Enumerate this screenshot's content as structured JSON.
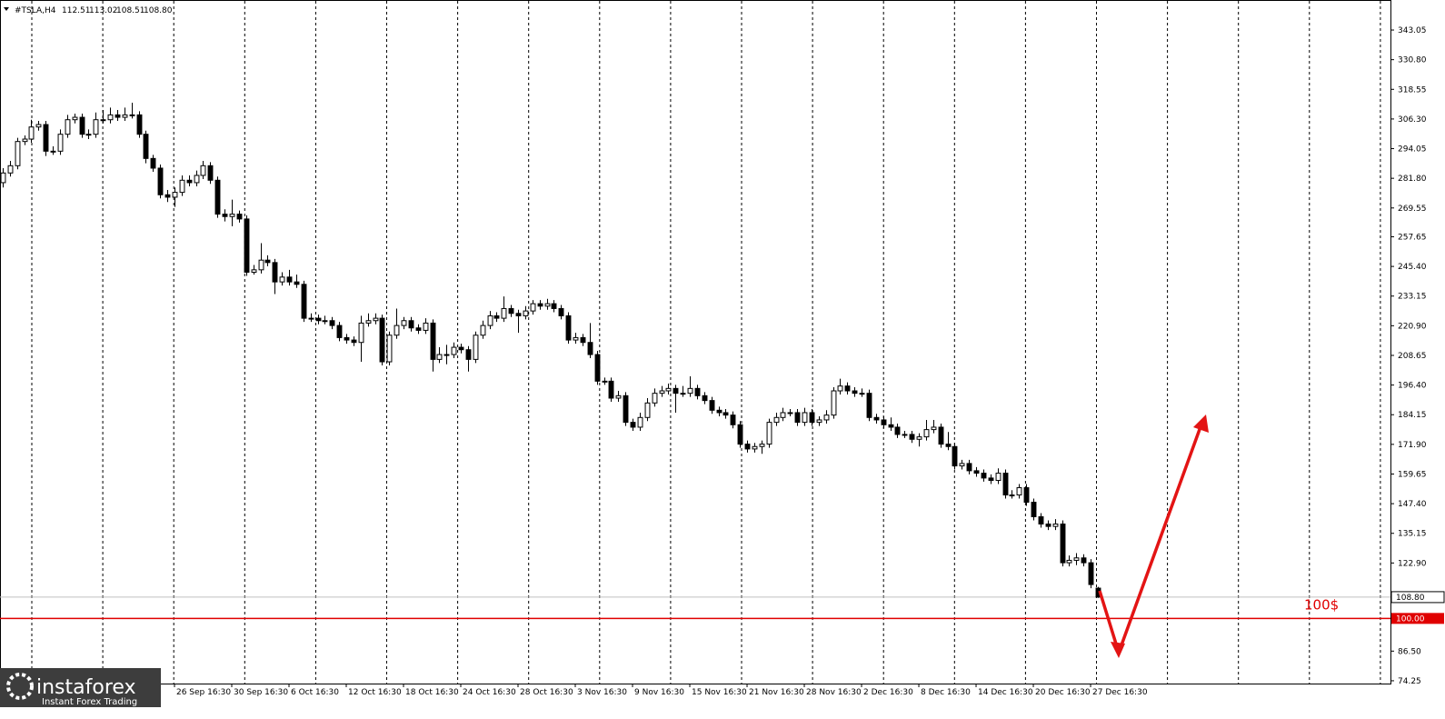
{
  "chart_data": {
    "type": "candlestick",
    "title": "#TSLA,H4",
    "ohlc_labels": [
      "112.51",
      "113.02",
      "108.51",
      "108.80"
    ],
    "candles": [
      [
        280,
        286,
        278,
        284
      ],
      [
        284,
        289,
        282.5,
        287
      ],
      [
        287,
        298.5,
        285.5,
        297
      ],
      [
        297,
        299.5,
        295.5,
        298
      ],
      [
        298,
        306,
        296.5,
        303
      ],
      [
        303,
        305.5,
        301.5,
        304
      ],
      [
        304,
        305.5,
        291,
        293
      ],
      [
        293,
        295,
        291.5,
        293
      ],
      [
        293,
        302,
        291.5,
        300
      ],
      [
        300,
        308,
        298.5,
        306
      ],
      [
        306,
        308.5,
        304.5,
        307
      ],
      [
        307,
        308.5,
        298.5,
        300
      ],
      [
        300,
        302,
        298,
        300
      ],
      [
        300,
        309,
        298.5,
        306
      ],
      [
        306,
        310,
        304.5,
        306
      ],
      [
        306,
        311,
        304.5,
        308
      ],
      [
        308,
        310,
        305.5,
        307
      ],
      [
        307,
        311,
        305.5,
        308
      ],
      [
        308,
        313,
        306.5,
        308
      ],
      [
        308,
        309.5,
        298.5,
        300
      ],
      [
        300,
        301.5,
        288,
        290
      ],
      [
        290,
        291.5,
        284.5,
        286
      ],
      [
        286,
        287.5,
        273.5,
        275
      ],
      [
        275,
        277,
        272,
        274
      ],
      [
        274,
        278,
        270,
        276
      ],
      [
        276,
        283,
        274.5,
        281
      ],
      [
        281,
        283,
        278.5,
        280
      ],
      [
        280,
        285,
        278.5,
        283
      ],
      [
        283,
        289,
        281.5,
        287
      ],
      [
        287,
        288.5,
        279.5,
        281
      ],
      [
        281,
        282.5,
        265.5,
        267
      ],
      [
        267,
        269,
        264,
        266
      ],
      [
        266,
        273,
        262,
        267
      ],
      [
        267,
        268.5,
        263.5,
        265
      ],
      [
        265,
        266.5,
        241.5,
        243
      ],
      [
        243,
        246,
        242,
        244
      ],
      [
        244,
        255,
        242.5,
        248
      ],
      [
        248,
        250,
        245.5,
        247
      ],
      [
        247,
        248.5,
        234,
        239
      ],
      [
        239,
        243,
        237.5,
        241
      ],
      [
        241,
        244,
        237.5,
        239
      ],
      [
        239,
        242,
        236.5,
        238
      ],
      [
        238,
        239.5,
        222.5,
        224
      ],
      [
        224,
        226,
        222.5,
        224
      ],
      [
        224,
        225.5,
        221.5,
        223
      ],
      [
        223,
        225,
        221.5,
        223
      ],
      [
        223,
        224.5,
        219.5,
        221
      ],
      [
        221,
        222.5,
        214.5,
        216
      ],
      [
        216,
        217.5,
        213.5,
        215
      ],
      [
        215,
        216.5,
        212.5,
        214
      ],
      [
        214,
        225,
        206,
        222
      ],
      [
        222,
        226,
        220.5,
        223
      ],
      [
        223,
        226,
        221.5,
        224
      ],
      [
        224,
        225.5,
        204.5,
        206
      ],
      [
        206,
        218.5,
        204.5,
        217
      ],
      [
        217,
        228,
        215.5,
        221
      ],
      [
        221,
        224.5,
        219.5,
        223
      ],
      [
        223,
        224.5,
        218.5,
        220
      ],
      [
        220,
        221.5,
        217.5,
        219
      ],
      [
        219,
        224,
        217.5,
        222
      ],
      [
        222,
        223.5,
        202,
        207
      ],
      [
        207,
        212,
        205.5,
        209
      ],
      [
        209,
        213,
        205,
        209
      ],
      [
        209,
        214,
        207.5,
        212
      ],
      [
        212,
        213.5,
        209.5,
        211
      ],
      [
        211,
        212.5,
        202,
        207
      ],
      [
        207,
        218.5,
        205.5,
        217
      ],
      [
        217,
        223,
        215.5,
        221
      ],
      [
        221,
        227,
        219.5,
        225
      ],
      [
        225,
        226.5,
        222.5,
        224
      ],
      [
        224,
        233,
        222.5,
        228
      ],
      [
        228,
        229.5,
        224.5,
        226
      ],
      [
        226,
        227.5,
        218,
        225
      ],
      [
        225,
        229,
        223.5,
        227
      ],
      [
        227,
        231.5,
        225.5,
        230
      ],
      [
        230,
        231.5,
        227.5,
        229
      ],
      [
        229,
        232,
        227.5,
        230
      ],
      [
        230,
        231.5,
        226.5,
        228
      ],
      [
        228,
        229.5,
        223.5,
        225
      ],
      [
        225,
        226.5,
        213.5,
        215
      ],
      [
        215,
        218,
        213.5,
        216
      ],
      [
        216,
        217.5,
        212.5,
        214
      ],
      [
        214,
        222,
        207.5,
        209
      ],
      [
        209,
        210.5,
        196.5,
        198
      ],
      [
        198,
        199.5,
        196.5,
        198
      ],
      [
        198,
        199.5,
        189.5,
        191
      ],
      [
        191,
        194,
        189.5,
        192
      ],
      [
        192,
        193.5,
        179.5,
        181
      ],
      [
        181,
        182.5,
        177.5,
        179
      ],
      [
        179,
        185,
        177.5,
        183
      ],
      [
        183,
        191,
        181.5,
        189
      ],
      [
        189,
        195,
        187.5,
        193
      ],
      [
        193,
        196,
        191.5,
        194
      ],
      [
        194,
        197,
        192.5,
        195
      ],
      [
        195,
        196.5,
        185,
        193
      ],
      [
        193,
        196,
        191.5,
        193
      ],
      [
        193,
        200,
        191.5,
        195
      ],
      [
        195,
        196.5,
        190.5,
        192
      ],
      [
        192,
        193.5,
        188.5,
        190
      ],
      [
        190,
        191.5,
        184.5,
        186
      ],
      [
        186,
        187.5,
        183.5,
        185
      ],
      [
        185,
        186.5,
        182.5,
        184
      ],
      [
        184,
        185.5,
        178.5,
        180
      ],
      [
        180,
        181.5,
        170.5,
        172
      ],
      [
        172,
        173.5,
        168.5,
        170
      ],
      [
        170,
        172.5,
        168.5,
        171
      ],
      [
        171,
        173.5,
        168,
        172
      ],
      [
        172,
        182.5,
        170.5,
        181
      ],
      [
        181,
        185,
        179.5,
        183
      ],
      [
        183,
        187,
        181.5,
        185
      ],
      [
        185,
        186.5,
        183.5,
        185
      ],
      [
        185,
        186.5,
        179.5,
        181
      ],
      [
        181,
        187,
        179.5,
        185
      ],
      [
        185,
        186.5,
        179.5,
        181
      ],
      [
        181,
        183.5,
        179.5,
        182
      ],
      [
        182,
        186,
        180.5,
        184
      ],
      [
        184,
        195.5,
        182.5,
        194
      ],
      [
        194,
        199,
        192.5,
        196
      ],
      [
        196,
        197.5,
        192.5,
        194
      ],
      [
        194,
        195.5,
        191.5,
        193
      ],
      [
        193,
        195,
        191.5,
        193
      ],
      [
        193,
        194.5,
        181.5,
        183
      ],
      [
        183,
        184.5,
        180.5,
        182
      ],
      [
        182,
        183.5,
        178.5,
        180
      ],
      [
        180,
        183,
        177.5,
        179
      ],
      [
        179,
        180.5,
        174.5,
        176
      ],
      [
        176,
        177.5,
        174.5,
        176
      ],
      [
        176,
        177.5,
        172.5,
        174
      ],
      [
        174,
        176.5,
        171,
        175
      ],
      [
        175,
        182,
        173.5,
        178
      ],
      [
        178,
        182,
        176.5,
        179
      ],
      [
        179,
        180.5,
        170.5,
        172
      ],
      [
        172,
        177,
        169.5,
        171
      ],
      [
        171,
        172.5,
        161.5,
        163
      ],
      [
        163,
        165.5,
        161.5,
        164
      ],
      [
        164,
        165.5,
        159.5,
        161
      ],
      [
        161,
        162.5,
        158.5,
        160
      ],
      [
        160,
        161.5,
        156.5,
        158
      ],
      [
        158,
        159.5,
        155.5,
        157
      ],
      [
        157,
        162,
        155.5,
        160
      ],
      [
        160,
        161.5,
        149.5,
        151
      ],
      [
        151,
        153,
        149.5,
        151
      ],
      [
        151,
        155.5,
        149.5,
        154
      ],
      [
        154,
        155.5,
        146.5,
        148
      ],
      [
        148,
        149.5,
        140.5,
        142
      ],
      [
        142,
        143.5,
        137.5,
        139
      ],
      [
        139,
        140.5,
        136.5,
        138
      ],
      [
        138,
        141,
        136.5,
        139
      ],
      [
        139,
        140.5,
        121.5,
        123
      ],
      [
        123,
        126,
        121.5,
        124
      ],
      [
        124,
        127,
        122,
        125
      ],
      [
        125,
        126.5,
        121.5,
        123
      ],
      [
        123,
        124.5,
        112.5,
        114
      ],
      [
        112.51,
        113.02,
        108.51,
        108.8
      ]
    ],
    "xlim": [
      -0.38,
      193.9
    ],
    "xticks": [
      {
        "value": 24,
        "label": "26 Sep 16:30"
      },
      {
        "value": 32,
        "label": "30 Sep 16:30"
      },
      {
        "value": 40,
        "label": "6 Oct 16:30"
      },
      {
        "value": 48,
        "label": "12 Oct 16:30"
      },
      {
        "value": 56,
        "label": "18 Oct 16:30"
      },
      {
        "value": 64,
        "label": "24 Oct 16:30"
      },
      {
        "value": 72,
        "label": "28 Oct 16:30"
      },
      {
        "value": 80,
        "label": "3 Nov 16:30"
      },
      {
        "value": 88,
        "label": "9 Nov 16:30"
      },
      {
        "value": 96,
        "label": "15 Nov 16:30"
      },
      {
        "value": 104,
        "label": "21 Nov 16:30"
      },
      {
        "value": 112,
        "label": "28 Nov 16:30"
      },
      {
        "value": 120,
        "label": "2 Dec 16:30"
      },
      {
        "value": 128,
        "label": "8 Dec 16:30"
      },
      {
        "value": 136,
        "label": "14 Dec 16:30"
      },
      {
        "value": 144,
        "label": "20 Dec 16:30"
      },
      {
        "value": 152,
        "label": "27 Dec 16:30"
      }
    ],
    "ylim": [
      73.1,
      354.7
    ],
    "yticks": [
      {
        "value": 343.05,
        "label": "343.05"
      },
      {
        "value": 330.8,
        "label": "330.80"
      },
      {
        "value": 318.55,
        "label": "318.55"
      },
      {
        "value": 306.3,
        "label": "306.30"
      },
      {
        "value": 294.05,
        "label": "294.05"
      },
      {
        "value": 281.8,
        "label": "281.80"
      },
      {
        "value": 269.55,
        "label": "269.55"
      },
      {
        "value": 257.65,
        "label": "257.65"
      },
      {
        "value": 245.4,
        "label": "245.40"
      },
      {
        "value": 233.15,
        "label": "233.15"
      },
      {
        "value": 220.9,
        "label": "220.90"
      },
      {
        "value": 208.65,
        "label": "208.65"
      },
      {
        "value": 196.4,
        "label": "196.40"
      },
      {
        "value": 184.15,
        "label": "184.15"
      },
      {
        "value": 171.9,
        "label": "171.90"
      },
      {
        "value": 159.65,
        "label": "159.65"
      },
      {
        "value": 147.4,
        "label": "147.40"
      },
      {
        "value": 135.15,
        "label": "135.15"
      },
      {
        "value": 122.9,
        "label": "122.90"
      },
      {
        "value": 86.5,
        "label": "86.50"
      },
      {
        "value": 74.25,
        "label": "74.25"
      }
    ],
    "current_price": {
      "value": 108.8,
      "label": "108.80",
      "color": "#c0c0c0"
    },
    "level": {
      "value": 100,
      "label": "100.00",
      "text": "100$",
      "color": "#e00000"
    },
    "bull_color": "#ffffff",
    "bear_color": "#000000",
    "logo": {
      "name": "instaforex",
      "tagline": "Instant Forex Trading"
    }
  }
}
